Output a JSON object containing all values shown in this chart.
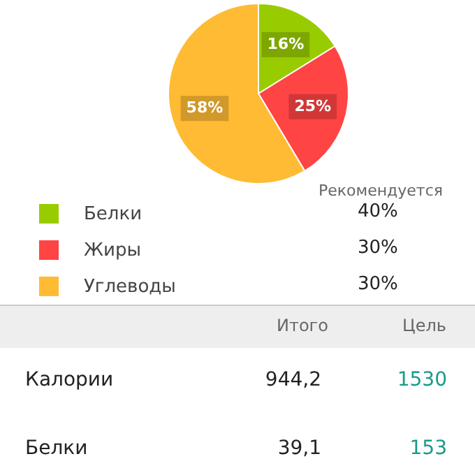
{
  "chart_data": {
    "type": "pie",
    "categories": [
      "Белки",
      "Жиры",
      "Углеводы"
    ],
    "values": [
      16,
      25,
      58
    ],
    "colors": [
      "#99cc00",
      "#ff4444",
      "#ffbb33"
    ],
    "value_labels": [
      "16%",
      "25%",
      "58%"
    ],
    "legend": "bottom left",
    "annotations": [
      "Рекомендуется",
      "40%",
      "30%",
      "30%",
      "Итого",
      "Цель",
      "Калории",
      "944,2",
      "1530",
      "Белки",
      "39,1",
      "153"
    ]
  }
}
